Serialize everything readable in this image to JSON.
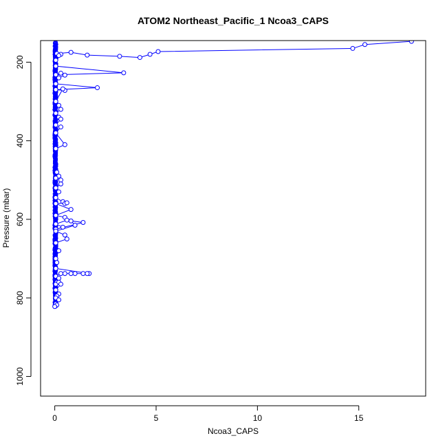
{
  "chart_data": {
    "type": "line",
    "title": "ATOM2 Northeast_Pacific_1 Ncoa3_CAPS",
    "xlabel": "Ncoa3_CAPS",
    "ylabel": "Pressure (mbar)",
    "xlim": [
      -0.7,
      18.3
    ],
    "ylim": [
      1050,
      145
    ],
    "y_reversed": true,
    "x_ticks": [
      0,
      5,
      10,
      15
    ],
    "y_ticks": [
      200,
      400,
      600,
      800,
      1000
    ],
    "grid": false,
    "line_color": "#0000ff",
    "marker": "open-circle",
    "series": [
      {
        "x": [
          17.6,
          15.3,
          14.7,
          5.1,
          4.7,
          4.2,
          3.2,
          1.6,
          0.8,
          0.1,
          0.3,
          0.05,
          0.2,
          0.05,
          3.4,
          0.05,
          0.3,
          0.5,
          0.2,
          0.05,
          2.1,
          0.05,
          0.5,
          0.4,
          0.05,
          0.2,
          0.3,
          0.05,
          0.2,
          0.3,
          0.05,
          0.3,
          0.05,
          0.5,
          0.05,
          0.1,
          0.2,
          0.05,
          0.3,
          0.3,
          0.05,
          0.2,
          0.05,
          0.4,
          0.5,
          0.6,
          0.05,
          0.8,
          0.05,
          0.5,
          0.6,
          0.05,
          0.4,
          0.05,
          1.4,
          0.8,
          1.0,
          0.05,
          0.5,
          0.6,
          0.05,
          0.2,
          0.05,
          0.1,
          0.05,
          1.7,
          1.6,
          1.4,
          1.0,
          0.8,
          0.5,
          0.3,
          0.05,
          0.2,
          0.1,
          0.05,
          0.2,
          0.3,
          0.05,
          0.2,
          0.1,
          0.05,
          0.2,
          0.05,
          0.1,
          0.0
        ],
        "y": [
          147,
          155,
          165,
          173,
          180,
          188,
          185,
          182,
          175,
          178,
          180,
          195,
          183,
          210,
          227,
          232,
          228,
          233,
          240,
          255,
          265,
          270,
          272,
          268,
          300,
          310,
          320,
          330,
          340,
          345,
          360,
          365,
          380,
          410,
          420,
          480,
          490,
          495,
          500,
          510,
          520,
          530,
          545,
          555,
          560,
          558,
          560,
          575,
          590,
          595,
          602,
          612,
          620,
          625,
          608,
          604,
          615,
          630,
          640,
          650,
          660,
          680,
          700,
          710,
          725,
          738,
          738,
          738,
          738,
          738,
          738,
          738,
          745,
          750,
          760,
          765,
          760,
          765,
          780,
          790,
          795,
          800,
          805,
          815,
          818,
          822
        ]
      }
    ]
  }
}
